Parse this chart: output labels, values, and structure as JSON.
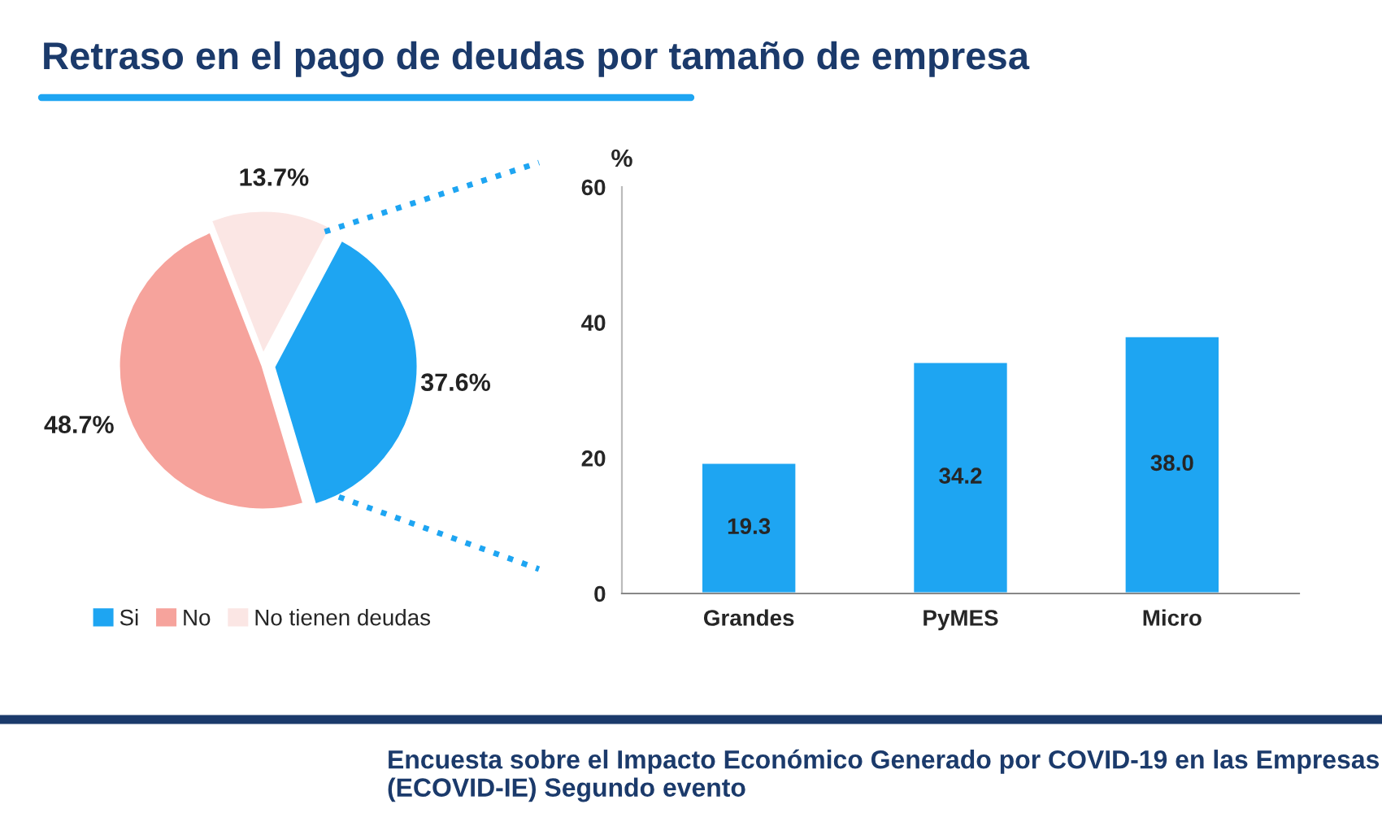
{
  "chart_data": [
    {
      "type": "pie",
      "title": "Retraso en el pago de deudas por tamaño de empresa",
      "categories": [
        "Si",
        "No",
        "No tienen deudas"
      ],
      "values": [
        37.6,
        48.7,
        13.7
      ],
      "colors": [
        "#1ea5f2",
        "#f6a39c",
        "#fbe6e4"
      ],
      "value_labels": [
        "37.6%",
        "48.7%",
        "13.7%"
      ],
      "legend": "bottom",
      "annotations": [
        "Encuesta sobre el Impacto Económico Generado por COVID-19 en las Empresas (ECOVID-IE) Segundo evento"
      ]
    },
    {
      "type": "bar",
      "categories": [
        "Grandes",
        "PyMES",
        "Micro"
      ],
      "values": [
        19.3,
        34.2,
        38.0
      ],
      "value_labels": [
        "19.3",
        "34.2",
        "38.0"
      ],
      "color": "#1ea5f2",
      "ylabel": "%",
      "ylim": [
        0,
        60
      ],
      "yticks": [
        0,
        20,
        40,
        60
      ],
      "grid": false
    }
  ]
}
